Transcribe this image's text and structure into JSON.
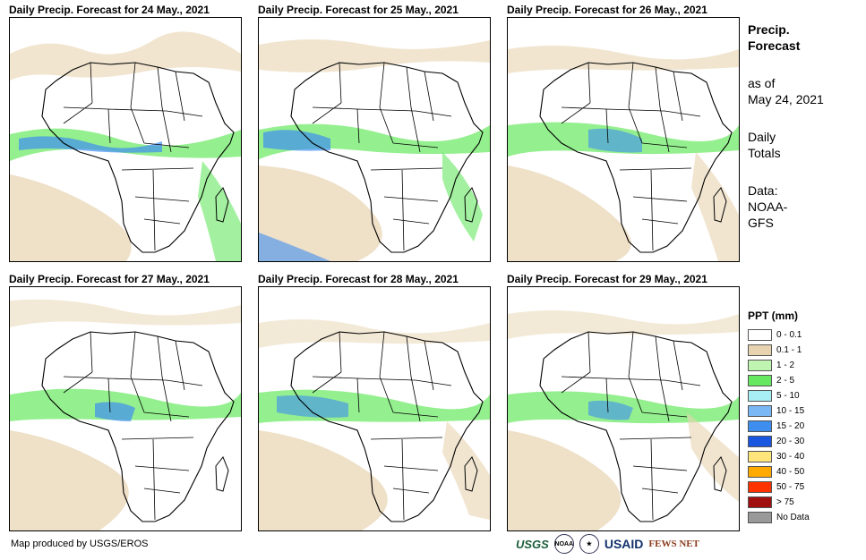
{
  "panels": [
    {
      "title": "Daily Precip. Forecast for 24 May., 2021"
    },
    {
      "title": "Daily Precip. Forecast for 25 May., 2021"
    },
    {
      "title": "Daily Precip. Forecast for 26 May., 2021"
    },
    {
      "title": "Daily Precip. Forecast for 27 May., 2021"
    },
    {
      "title": "Daily Precip. Forecast for 28 May., 2021"
    },
    {
      "title": "Daily Precip. Forecast for 29 May., 2021"
    }
  ],
  "sidebar": {
    "heading_line1": "Precip.",
    "heading_line2": "Forecast",
    "asof_line1": "as of",
    "asof_line2": "May 24, 2021",
    "totals_line1": "Daily",
    "totals_line2": "Totals",
    "data_line1": "Data:",
    "data_line2": "NOAA-",
    "data_line3": "GFS"
  },
  "legend": {
    "title": "PPT (mm)",
    "items": [
      {
        "label": "0 - 0.1",
        "color": "#ffffff"
      },
      {
        "label": "0.1 - 1",
        "color": "#e8d3b0"
      },
      {
        "label": "1 - 2",
        "color": "#bff5b0"
      },
      {
        "label": "2 - 5",
        "color": "#66e860"
      },
      {
        "label": "5 - 10",
        "color": "#a8eef5"
      },
      {
        "label": "10 - 15",
        "color": "#7ab8f5"
      },
      {
        "label": "15 - 20",
        "color": "#3e8ef0"
      },
      {
        "label": "20 - 30",
        "color": "#1a56e0"
      },
      {
        "label": "30 - 40",
        "color": "#ffe57a"
      },
      {
        "label": "40 - 50",
        "color": "#ffaa00"
      },
      {
        "label": "50 - 75",
        "color": "#ff3300"
      },
      {
        "label": "> 75",
        "color": "#a01010"
      },
      {
        "label": "No Data",
        "color": "#999999"
      }
    ]
  },
  "footer": {
    "credit": "Map produced by USGS/EROS"
  },
  "logos": {
    "usgs": "USGS",
    "noaa": "NOAA",
    "usaid": "USAID",
    "fews": "FEWS NET"
  }
}
